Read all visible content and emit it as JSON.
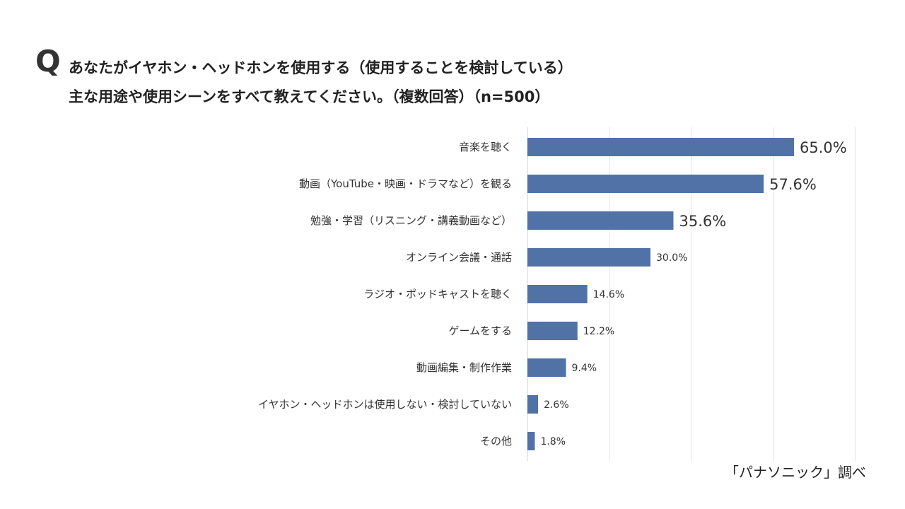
{
  "title_mark": "Q",
  "title_lines": [
    "あなたがイヤホン・ヘッドホンを使用する（使用することを検討している）",
    "主な用途や使用シーンをすべて教えてください。（複数回答）（n=500）"
  ],
  "source": "「パナソニック」調べ",
  "chart_data": {
    "type": "bar",
    "orientation": "horizontal",
    "categories": [
      "音楽を聴く",
      "動画（YouTube・映画・ドラマなど）を観る",
      "勉強・学習（リスニング・講義動画など）",
      "オンライン会議・通話",
      "ラジオ・ポッドキャストを聴く",
      "ゲームをする",
      "動画編集・制作作業",
      "イヤホン・ヘッドホンは使用しない・検討していない",
      "その他"
    ],
    "values": [
      65.0,
      57.6,
      35.6,
      30.0,
      14.6,
      12.2,
      9.4,
      2.6,
      1.8
    ],
    "labels": [
      "65.0%",
      "57.6%",
      "35.6%",
      "30.0%",
      "14.6%",
      "12.2%",
      "9.4%",
      "2.6%",
      "1.8%"
    ],
    "xlim": [
      0,
      80
    ],
    "grid": true,
    "bar_color": "#5072a7",
    "highlighted_labels": 3
  }
}
